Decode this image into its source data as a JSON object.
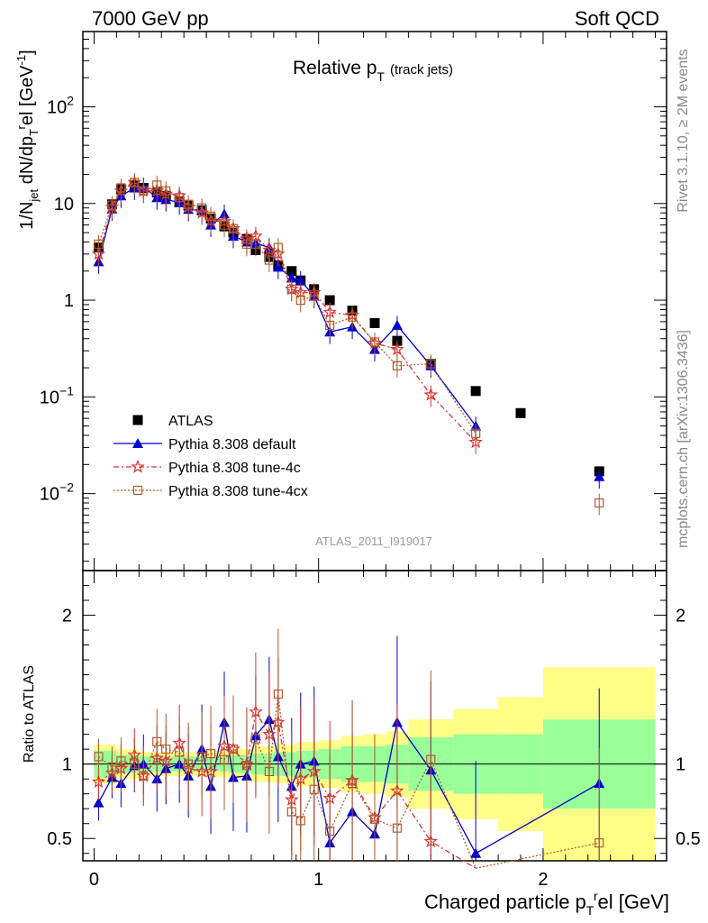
{
  "header": {
    "left": "7000 GeV pp",
    "right": "Soft QCD"
  },
  "plot_title": {
    "main": "Relative p",
    "sub": "T",
    "note": "(track jets)"
  },
  "analysis_id": "ATLAS_2011_I919017",
  "side_labels": {
    "rivet": "Rivet 3.1.10, ≥ 2M events",
    "mcplots": "mcplots.cern.ch [arXiv:1306.3436]"
  },
  "colors": {
    "atlas": "#000000",
    "default": "#0000cc",
    "tune4c": "#dd3333",
    "tune4cx": "#b35a2a",
    "band_inner": "#99ff99",
    "band_outer": "#ffff88"
  },
  "legend": [
    {
      "key": "atlas",
      "label": "ATLAS"
    },
    {
      "key": "default",
      "label": "Pythia 8.308 default"
    },
    {
      "key": "tune4c",
      "label": "Pythia 8.308 tune-4c"
    },
    {
      "key": "tune4cx",
      "label": "Pythia 8.308 tune-4cx"
    }
  ],
  "chart_data": [
    {
      "type": "scatter",
      "panel": "main",
      "ylabel": "1/N_jet dN/dp_T^rel [GeV^-1]",
      "yscale": "log",
      "ylim": [
        0.0016,
        600
      ],
      "xlim": [
        -0.05,
        2.55
      ],
      "y_ticks": [
        "10^-2",
        "10^-1",
        "1",
        "10",
        "10^2"
      ],
      "x": [
        0.02,
        0.08,
        0.12,
        0.18,
        0.22,
        0.28,
        0.32,
        0.38,
        0.42,
        0.48,
        0.52,
        0.58,
        0.62,
        0.68,
        0.72,
        0.78,
        0.82,
        0.88,
        0.92,
        0.98,
        1.05,
        1.15,
        1.25,
        1.35,
        1.5,
        1.7,
        1.9,
        2.25
      ],
      "series": [
        {
          "name": "ATLAS",
          "key": "atlas",
          "values": [
            3.5,
            9.8,
            14.0,
            15.5,
            14.5,
            13.0,
            12.0,
            10.5,
            9.5,
            8.5,
            7.0,
            5.8,
            5.0,
            4.3,
            3.3,
            2.8,
            2.3,
            2.0,
            1.6,
            1.3,
            1.0,
            0.78,
            0.58,
            0.38,
            0.22,
            0.115,
            0.068,
            0.017
          ]
        },
        {
          "name": "Pythia 8.308 default",
          "key": "default",
          "values": [
            2.5,
            8.8,
            12.0,
            14.5,
            14.8,
            11.5,
            11.0,
            10.2,
            8.7,
            8.5,
            6.0,
            7.8,
            4.6,
            4.0,
            3.9,
            3.5,
            2.2,
            1.7,
            1.6,
            1.1,
            0.47,
            0.53,
            0.31,
            0.55,
            0.21,
            0.05,
            null,
            0.015
          ]
        },
        {
          "name": "Pythia 8.308 tune-4c",
          "key": "tune4c",
          "values": [
            3.0,
            9.2,
            13.5,
            16.5,
            13.5,
            13.5,
            12.5,
            12.0,
            9.2,
            8.0,
            6.6,
            6.5,
            5.5,
            4.3,
            4.6,
            3.3,
            3.0,
            1.3,
            1.2,
            1.2,
            0.75,
            0.7,
            0.36,
            0.31,
            0.105,
            0.034,
            null,
            null
          ]
        },
        {
          "name": "Pythia 8.308 tune-4cx",
          "key": "tune4cx",
          "values": [
            3.8,
            9.6,
            14.5,
            16.5,
            13.5,
            15.5,
            13.5,
            11.5,
            9.8,
            9.0,
            7.4,
            6.0,
            5.5,
            3.8,
            3.8,
            2.6,
            3.5,
            1.3,
            1.0,
            1.1,
            0.55,
            0.67,
            0.37,
            0.21,
            0.22,
            0.042,
            null,
            0.008
          ]
        }
      ]
    },
    {
      "type": "line",
      "panel": "ratio",
      "xlabel": "Charged particle p_T^rel [GeV]",
      "ylabel": "Ratio to ATLAS",
      "ylim": [
        0.35,
        2.3
      ],
      "xlim": [
        -0.05,
        2.55
      ],
      "x_ticks": [
        "0",
        "1",
        "2"
      ],
      "y_ticks": [
        "0.5",
        "1",
        "2"
      ],
      "reference": 1,
      "x": [
        0.02,
        0.08,
        0.12,
        0.18,
        0.22,
        0.28,
        0.32,
        0.38,
        0.42,
        0.48,
        0.52,
        0.58,
        0.62,
        0.68,
        0.72,
        0.78,
        0.82,
        0.88,
        0.92,
        0.98,
        1.05,
        1.15,
        1.25,
        1.35,
        1.5,
        1.7,
        2.25
      ],
      "series": [
        {
          "name": "Pythia 8.308 default",
          "key": "default",
          "values": [
            0.74,
            0.91,
            0.87,
            0.99,
            1.0,
            0.9,
            0.97,
            1.0,
            0.92,
            1.1,
            0.85,
            1.28,
            0.91,
            0.92,
            1.19,
            1.3,
            1.05,
            0.85,
            1.0,
            1.02,
            0.47,
            0.68,
            0.53,
            1.28,
            0.96,
            0.4,
            0.87
          ]
        },
        {
          "name": "Pythia 8.308 tune-4c",
          "key": "tune4c",
          "values": [
            0.88,
            0.94,
            0.97,
            1.06,
            0.92,
            1.04,
            1.02,
            1.14,
            0.97,
            0.95,
            0.95,
            1.12,
            1.1,
            1.0,
            1.35,
            1.2,
            1.28,
            0.76,
            0.9,
            0.95,
            0.77,
            0.89,
            0.64,
            0.82,
            0.48,
            0.3,
            null
          ]
        },
        {
          "name": "Pythia 8.308 tune-4cx",
          "key": "tune4cx",
          "values": [
            1.05,
            0.98,
            1.02,
            1.0,
            0.92,
            1.15,
            1.1,
            1.08,
            1.0,
            1.05,
            1.07,
            1.03,
            1.1,
            0.99,
            1.17,
            0.95,
            1.47,
            0.68,
            0.62,
            0.83,
            0.55,
            0.87,
            0.63,
            0.57,
            1.03,
            0.3,
            0.47
          ]
        }
      ],
      "mc_uncertainty_bands": {
        "x_edges": [
          0.0,
          0.1,
          0.2,
          0.3,
          0.4,
          0.5,
          0.6,
          0.7,
          0.8,
          0.9,
          1.0,
          1.1,
          1.2,
          1.3,
          1.4,
          1.6,
          1.8,
          2.0,
          2.5
        ],
        "inner": [
          0.09,
          0.06,
          0.05,
          0.05,
          0.05,
          0.05,
          0.06,
          0.07,
          0.08,
          0.09,
          0.1,
          0.12,
          0.12,
          0.13,
          0.18,
          0.2,
          0.2,
          0.3
        ],
        "outer": [
          0.13,
          0.1,
          0.08,
          0.08,
          0.08,
          0.09,
          0.1,
          0.12,
          0.13,
          0.15,
          0.16,
          0.19,
          0.2,
          0.22,
          0.3,
          0.37,
          0.45,
          0.65
        ]
      }
    }
  ]
}
